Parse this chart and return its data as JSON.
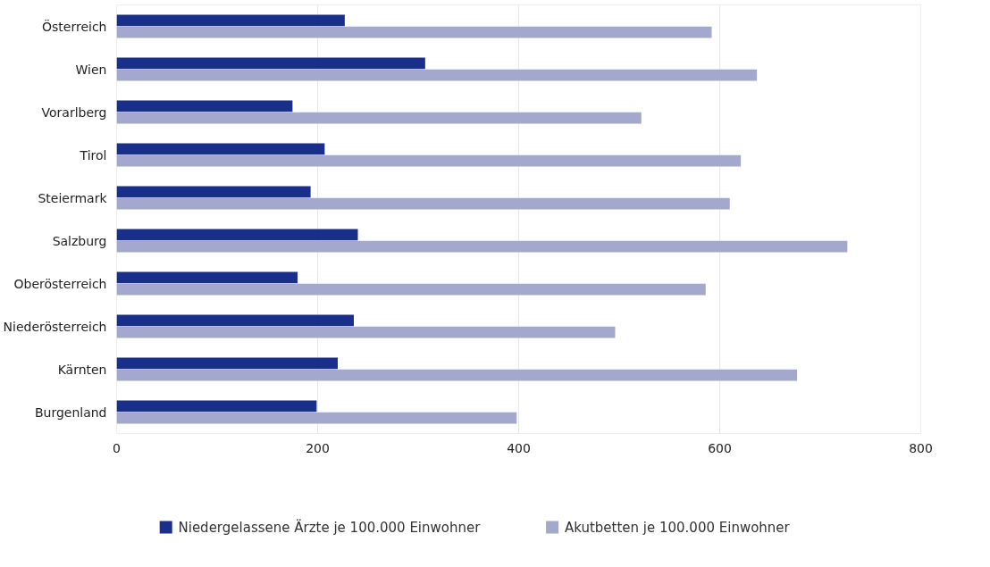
{
  "chart_data": {
    "type": "bar",
    "orientation": "horizontal",
    "categories": [
      "Österreich",
      "Wien",
      "Vorarlberg",
      "Tirol",
      "Steiermark",
      "Salzburg",
      "Oberösterreich",
      "Niederösterreich",
      "Kärnten",
      "Burgenland"
    ],
    "series": [
      {
        "name": "Niedergelassene Ärzte je 100.000 Einwohner",
        "color": "#1a2f8c",
        "values": [
          227,
          307,
          175,
          207,
          193,
          240,
          180,
          236,
          220,
          199
        ]
      },
      {
        "name": "Akutbetten je 100.000 Einwohner",
        "color": "#a3a8cc",
        "values": [
          592,
          637,
          522,
          621,
          610,
          727,
          586,
          496,
          677,
          398
        ]
      }
    ],
    "xlim": [
      0,
      800
    ],
    "xticks": [
      0,
      200,
      400,
      600,
      800
    ],
    "grid": "x",
    "legend": "bottom"
  }
}
